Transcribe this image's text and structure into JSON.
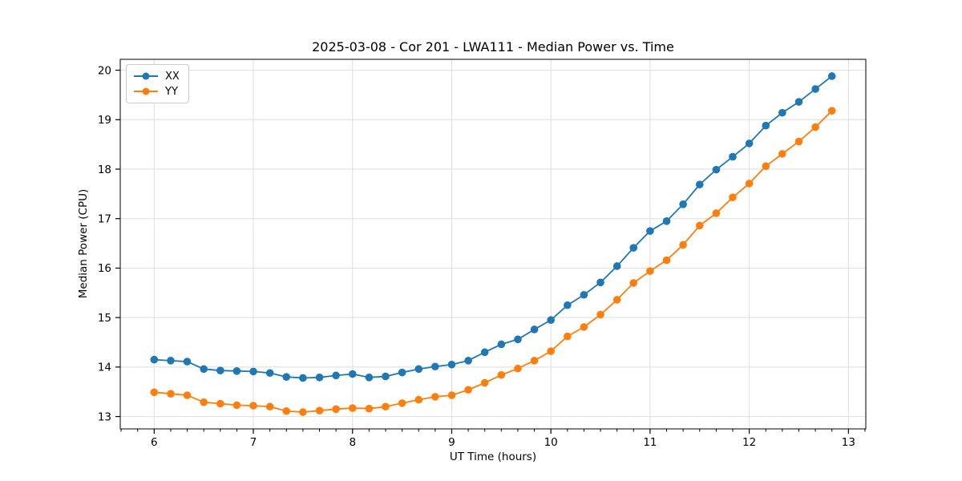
{
  "figure": {
    "title": "2025-03-08 - Cor 201 - LWA111 - Median Power vs. Time"
  },
  "colors": {
    "series_blue": "#1f77b4",
    "series_orange": "#ff7f0e",
    "grid": "#dedede",
    "spine": "#000000",
    "legend_border": "#cccccc"
  },
  "chart_data": {
    "type": "line",
    "title": "2025-03-08 - Cor 201 - LWA111 - Median Power vs. Time",
    "xlabel": "UT Time (hours)",
    "ylabel": "Median Power (CPU)",
    "grid": true,
    "legend_position": "upper left",
    "marker": "circle",
    "xlim": [
      5.658,
      13.175
    ],
    "ylim": [
      12.75,
      20.22
    ],
    "x_ticks": [
      6,
      7,
      8,
      9,
      10,
      11,
      12,
      13
    ],
    "x_tick_labels": [
      "6",
      "7",
      "8",
      "9",
      "10",
      "11",
      "12",
      "13"
    ],
    "y_ticks": [
      13,
      14,
      15,
      16,
      17,
      18,
      19,
      20
    ],
    "y_tick_labels": [
      "13",
      "14",
      "15",
      "16",
      "17",
      "18",
      "19",
      "20"
    ],
    "x_minor_tick_step": 0.166667,
    "x": [
      6.0,
      6.167,
      6.333,
      6.5,
      6.667,
      6.833,
      7.0,
      7.167,
      7.333,
      7.5,
      7.667,
      7.833,
      8.0,
      8.167,
      8.333,
      8.5,
      8.667,
      8.833,
      9.0,
      9.167,
      9.333,
      9.5,
      9.667,
      9.833,
      10.0,
      10.167,
      10.333,
      10.5,
      10.667,
      10.833,
      11.0,
      11.167,
      11.333,
      11.5,
      11.667,
      11.833,
      12.0,
      12.167,
      12.333,
      12.5,
      12.667,
      12.833
    ],
    "series": [
      {
        "name": "XX",
        "color": "#1f77b4",
        "values": [
          14.15,
          14.13,
          14.11,
          13.96,
          13.93,
          13.92,
          13.91,
          13.88,
          13.8,
          13.78,
          13.79,
          13.83,
          13.86,
          13.79,
          13.81,
          13.89,
          13.96,
          14.01,
          14.05,
          14.13,
          14.3,
          14.46,
          14.56,
          14.76,
          14.95,
          15.25,
          15.46,
          15.71,
          16.04,
          16.41,
          16.75,
          16.95,
          17.29,
          17.69,
          17.99,
          18.25,
          18.52,
          18.88,
          19.14,
          19.36,
          19.62,
          19.88
        ]
      },
      {
        "name": "YY",
        "color": "#ff7f0e",
        "values": [
          13.49,
          13.46,
          13.43,
          13.29,
          13.26,
          13.23,
          13.22,
          13.2,
          13.11,
          13.09,
          13.12,
          13.15,
          13.17,
          13.16,
          13.2,
          13.27,
          13.34,
          13.4,
          13.43,
          13.54,
          13.68,
          13.84,
          13.97,
          14.13,
          14.32,
          14.62,
          14.81,
          15.06,
          15.36,
          15.7,
          15.94,
          16.16,
          16.47,
          16.86,
          17.11,
          17.43,
          17.71,
          18.06,
          18.31,
          18.56,
          18.85,
          19.18
        ]
      }
    ]
  }
}
